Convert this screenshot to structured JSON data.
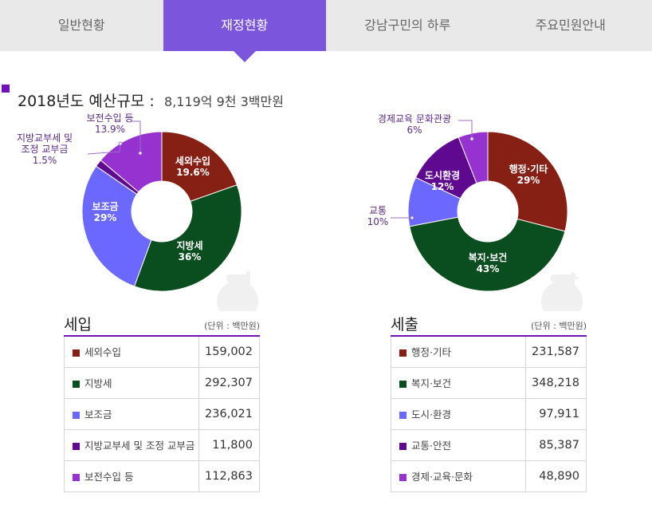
{
  "tabs": [
    {
      "label": "일반현황",
      "active": false
    },
    {
      "label": "재정현황",
      "active": true
    },
    {
      "label": "강남구민의 하루",
      "active": false
    },
    {
      "label": "주요민원안내",
      "active": false
    }
  ],
  "heading": {
    "title": "2018년도 예산규모 :",
    "value": "8,119억 9천 3백만원"
  },
  "colors": {
    "tab_active": "#7b55dc",
    "accent": "#6f13b8",
    "red": "#861f14",
    "green": "#0a4d1e",
    "blue": "#6b68ff",
    "dark_purple": "#5f0890",
    "purple": "#9632d0",
    "label_purple": "#5a2a86"
  },
  "chart_data": [
    {
      "type": "pie",
      "name": "세입",
      "labels": [
        "세외수입",
        "지방세",
        "보조금",
        "지방교부세 및 조정 교부금",
        "보전수입 등"
      ],
      "values": [
        19.6,
        36,
        29,
        1.5,
        13.9
      ],
      "slice_text": [
        "세외수입|19.6%",
        "지방세|36%",
        "보조금|29%",
        "지방교부세 및|조정 교부금|1.5%",
        "보전수입 등|13.9%"
      ],
      "colors": [
        "#861f14",
        "#0a4d1e",
        "#6b68ff",
        "#5f0890",
        "#9632d0"
      ]
    },
    {
      "type": "pie",
      "name": "세출",
      "labels": [
        "행정·기타",
        "복지·보건",
        "교통",
        "도시환경",
        "경제교육 문화관광"
      ],
      "values": [
        29,
        43,
        10,
        12,
        6
      ],
      "slice_text": [
        "행정·기타|29%",
        "복지·보건|43%",
        "교통|10%",
        "도시환경|12%",
        "경제교육 문화관광|6%"
      ],
      "colors": [
        "#861f14",
        "#0a4d1e",
        "#6b68ff",
        "#5f0890",
        "#9632d0"
      ]
    }
  ],
  "revenue": {
    "title": "세입",
    "unit": "(단위 : 백만원)",
    "rows": [
      {
        "label": "세외수입",
        "value": "159,002",
        "color": "#861f14"
      },
      {
        "label": "지방세",
        "value": "292,307",
        "color": "#0a4d1e"
      },
      {
        "label": "보조금",
        "value": "236,021",
        "color": "#6b68ff"
      },
      {
        "label": "지방교부세 및 조정 교부금",
        "value": "11,800",
        "color": "#5f0890"
      },
      {
        "label": "보전수입 등",
        "value": "112,863",
        "color": "#9632d0"
      }
    ]
  },
  "expenditure": {
    "title": "세출",
    "unit": "(단위 : 백만원)",
    "rows": [
      {
        "label": "행정·기타",
        "value": "231,587",
        "color": "#861f14"
      },
      {
        "label": "복지·보건",
        "value": "348,218",
        "color": "#0a4d1e"
      },
      {
        "label": "도시·환경",
        "value": "97,911",
        "color": "#6b68ff"
      },
      {
        "label": "교통·안전",
        "value": "85,387",
        "color": "#5f0890"
      },
      {
        "label": "경제·교육·문화",
        "value": "48,890",
        "color": "#9632d0"
      }
    ]
  }
}
